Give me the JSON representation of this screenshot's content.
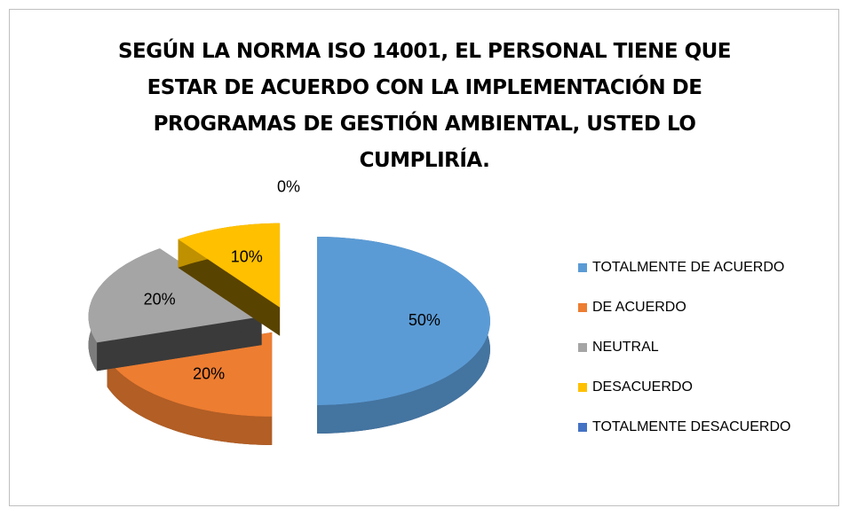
{
  "chart_data": {
    "type": "pie",
    "title": "SEGÚN LA NORMA ISO 14001, EL PERSONAL TIENE QUE ESTAR DE ACUERDO CON LA IMPLEMENTACIÓN DE PROGRAMAS DE GESTIÓN AMBIENTAL, USTED LO CUMPLIRÍA.",
    "categories": [
      "TOTALMENTE DE ACUERDO",
      "DE ACUERDO",
      "NEUTRAL",
      "DESACUERDO",
      "TOTALMENTE DESACUERDO"
    ],
    "values": [
      50,
      20,
      20,
      10,
      0
    ],
    "value_labels": [
      "50%",
      "20%",
      "20%",
      "10%",
      "0%"
    ],
    "colors": [
      "#5b9bd5",
      "#ed7d31",
      "#a5a5a5",
      "#ffc000",
      "#4472c4"
    ],
    "legend": "right"
  }
}
